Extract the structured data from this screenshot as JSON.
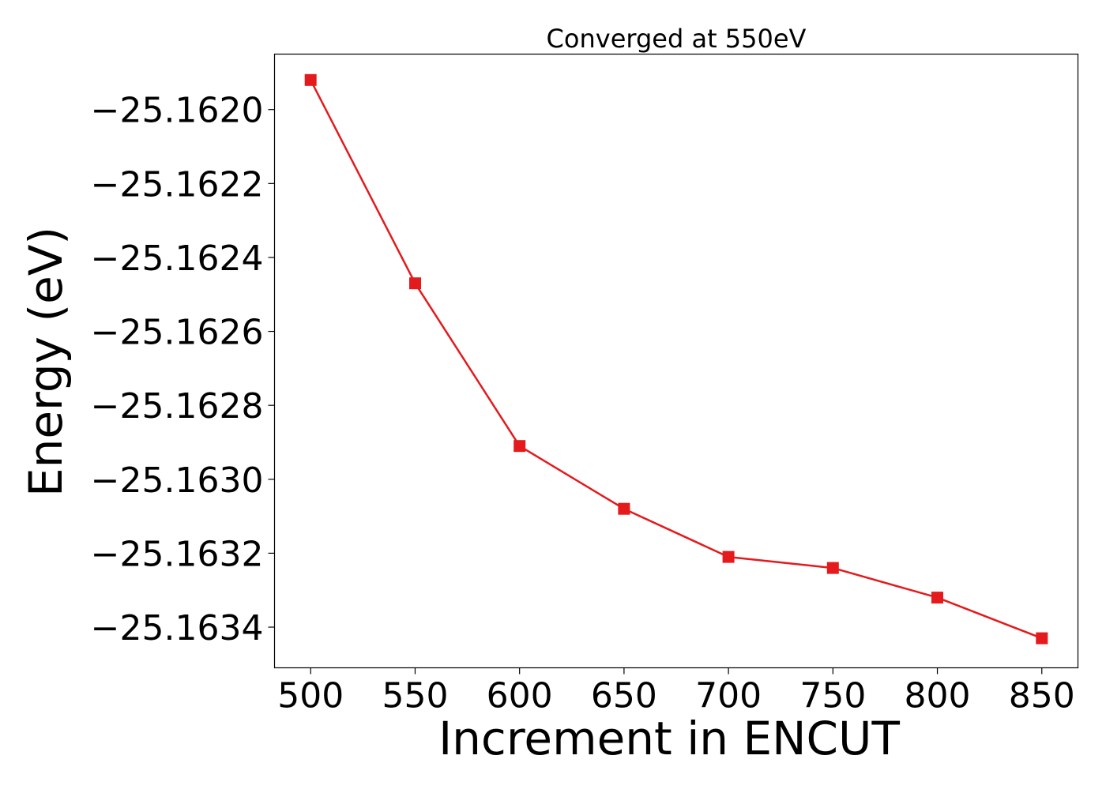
{
  "chart_data": {
    "type": "line",
    "title": "Converged at 550eV",
    "xlabel": "Increment in ENCUT",
    "ylabel": "Energy (eV)",
    "x": [
      500,
      550,
      600,
      650,
      700,
      750,
      800,
      850
    ],
    "series": [
      {
        "values": [
          -25.16192,
          -25.16247,
          -25.16291,
          -25.16308,
          -25.16321,
          -25.16324,
          -25.16332,
          -25.16343
        ],
        "color": "#e41a1c",
        "marker": "square"
      }
    ],
    "xticks": [
      500,
      550,
      600,
      650,
      700,
      750,
      800,
      850
    ],
    "xtick_labels": [
      "500",
      "550",
      "600",
      "650",
      "700",
      "750",
      "800",
      "850"
    ],
    "yticks": [
      -25.162,
      -25.1622,
      -25.1624,
      -25.1626,
      -25.1628,
      -25.163,
      -25.1632,
      -25.1634
    ],
    "ytick_labels": [
      "−25.1620",
      "−25.1622",
      "−25.1624",
      "−25.1626",
      "−25.1628",
      "−25.1630",
      "−25.1632",
      "−25.1634"
    ],
    "xlim": [
      482.7,
      867.3
    ],
    "ylim": [
      -25.16351,
      -25.16185
    ],
    "grid": false,
    "legend": "none"
  }
}
